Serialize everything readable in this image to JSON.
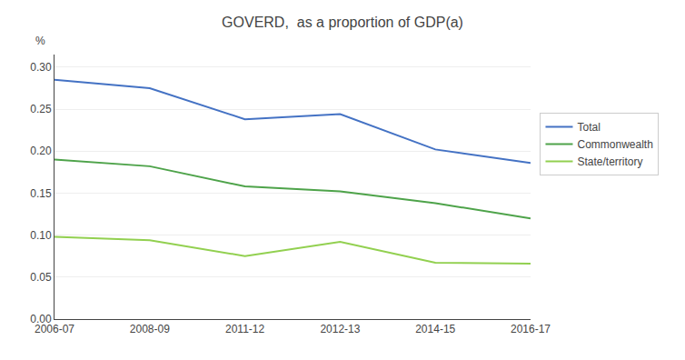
{
  "chart_data": {
    "type": "line",
    "title": "GOVERD,  as a proportion of GDP(a)",
    "ylabel": "%",
    "categories": [
      "2006-07",
      "2008-09",
      "2011-12",
      "2012-13",
      "2014-15",
      "2016-17"
    ],
    "series": [
      {
        "name": "Total",
        "color": "#4472C4",
        "values": [
          0.285,
          0.275,
          0.238,
          0.244,
          0.202,
          0.186
        ]
      },
      {
        "name": "Commonwealth",
        "color": "#4EA34A",
        "values": [
          0.19,
          0.182,
          0.158,
          0.152,
          0.138,
          0.12
        ]
      },
      {
        "name": "State/territory",
        "color": "#92D050",
        "values": [
          0.098,
          0.094,
          0.075,
          0.092,
          0.067,
          0.066
        ]
      }
    ],
    "ylim": [
      0.0,
      0.315
    ],
    "yticks": [
      {
        "value": 0.0,
        "label": "0.00"
      },
      0.05,
      {
        "value": 0.1,
        "label": "0.10"
      },
      0.15,
      {
        "value": 0.2,
        "label": "0.20"
      },
      0.25,
      {
        "value": 0.3,
        "label": "0.30"
      }
    ],
    "grid": true,
    "legend": "right"
  }
}
